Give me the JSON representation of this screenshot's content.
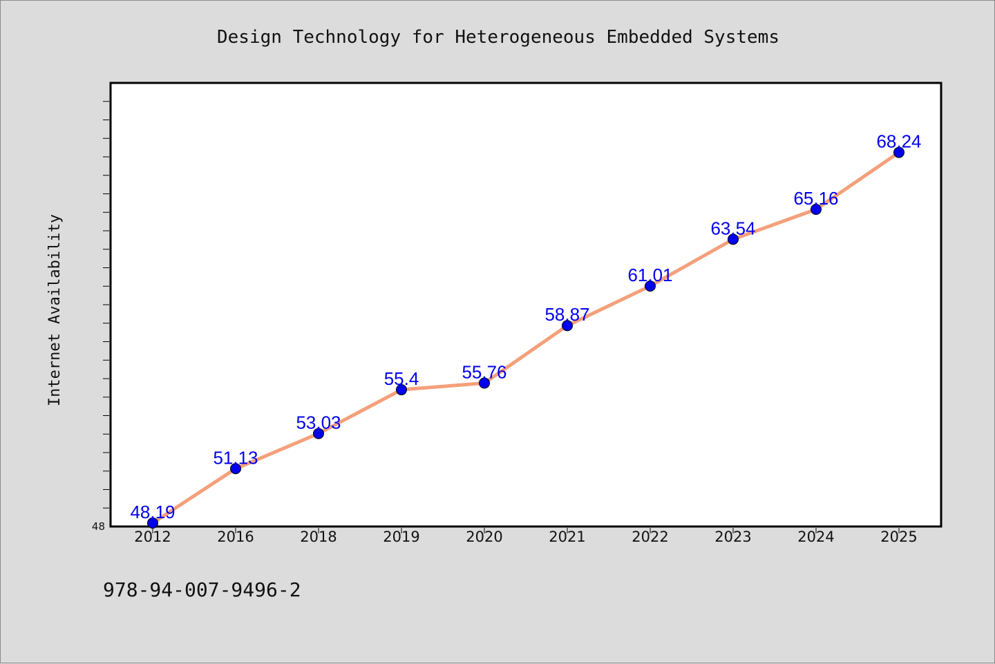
{
  "chart_data": {
    "type": "line",
    "title": "Design Technology for Heterogeneous Embedded Systems",
    "ylabel": "Internet Availability",
    "xlabel": "",
    "categories": [
      "2012",
      "2016",
      "2018",
      "2019",
      "2020",
      "2021",
      "2022",
      "2023",
      "2024",
      "2025"
    ],
    "values": [
      48.19,
      51.13,
      53.03,
      55.4,
      55.76,
      58.87,
      61.01,
      63.54,
      65.16,
      68.24
    ],
    "data_labels": [
      "48.19",
      "51.13",
      "53.03",
      "55.4",
      "55.76",
      "58.87",
      "61.01",
      "63.54",
      "65.16",
      "68.24"
    ],
    "y_tick_labels": [
      "48"
    ],
    "ylim": [
      48,
      72
    ],
    "grid": false,
    "line_color": "#f4a07a",
    "marker_color": "#0000ee",
    "label_color": "#0000ee",
    "plot_background": "#ffffff",
    "page_background": "#dcdcdc"
  },
  "footer": {
    "isbn": "978-94-007-9496-2"
  }
}
